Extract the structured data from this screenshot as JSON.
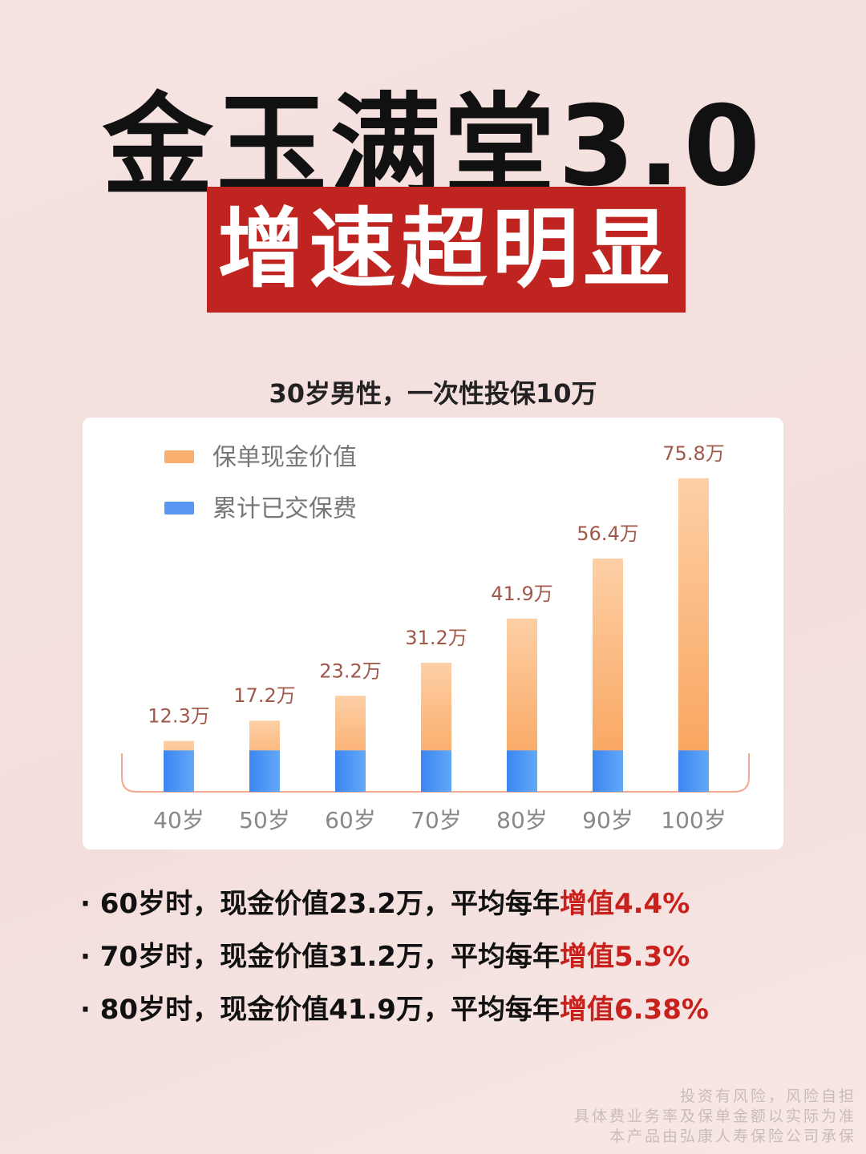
{
  "title": "金玉满堂3.0",
  "subtitle": "增速超明显",
  "chart_data": {
    "type": "bar",
    "title": "30岁男性，一次性投保10万",
    "categories": [
      "40岁",
      "50岁",
      "60岁",
      "70岁",
      "80岁",
      "90岁",
      "100岁"
    ],
    "series": [
      {
        "name": "保单现金价值",
        "color": "#f9a056",
        "values": [
          12.3,
          17.2,
          23.2,
          31.2,
          41.9,
          56.4,
          75.8
        ],
        "value_labels": [
          "12.3万",
          "17.2万",
          "23.2万",
          "31.2万",
          "41.9万",
          "56.4万",
          "75.8万"
        ]
      },
      {
        "name": "累计已交保费",
        "color": "#3b86f2",
        "values": [
          10,
          10,
          10,
          10,
          10,
          10,
          10
        ]
      }
    ]
  },
  "bullets": [
    {
      "text": "60岁时，现金价值23.2万，平均每年",
      "highlight": "增值4.4%"
    },
    {
      "text": "70岁时，现金价值31.2万，平均每年",
      "highlight": "增值5.3%"
    },
    {
      "text": "80岁时，现金价值41.9万，平均每年",
      "highlight": "增值6.38%"
    }
  ],
  "footer": [
    "投资有风险，风险自担",
    "具体费业务率及保单金额以实际为准",
    "本产品由弘康人寿保险公司承保"
  ]
}
